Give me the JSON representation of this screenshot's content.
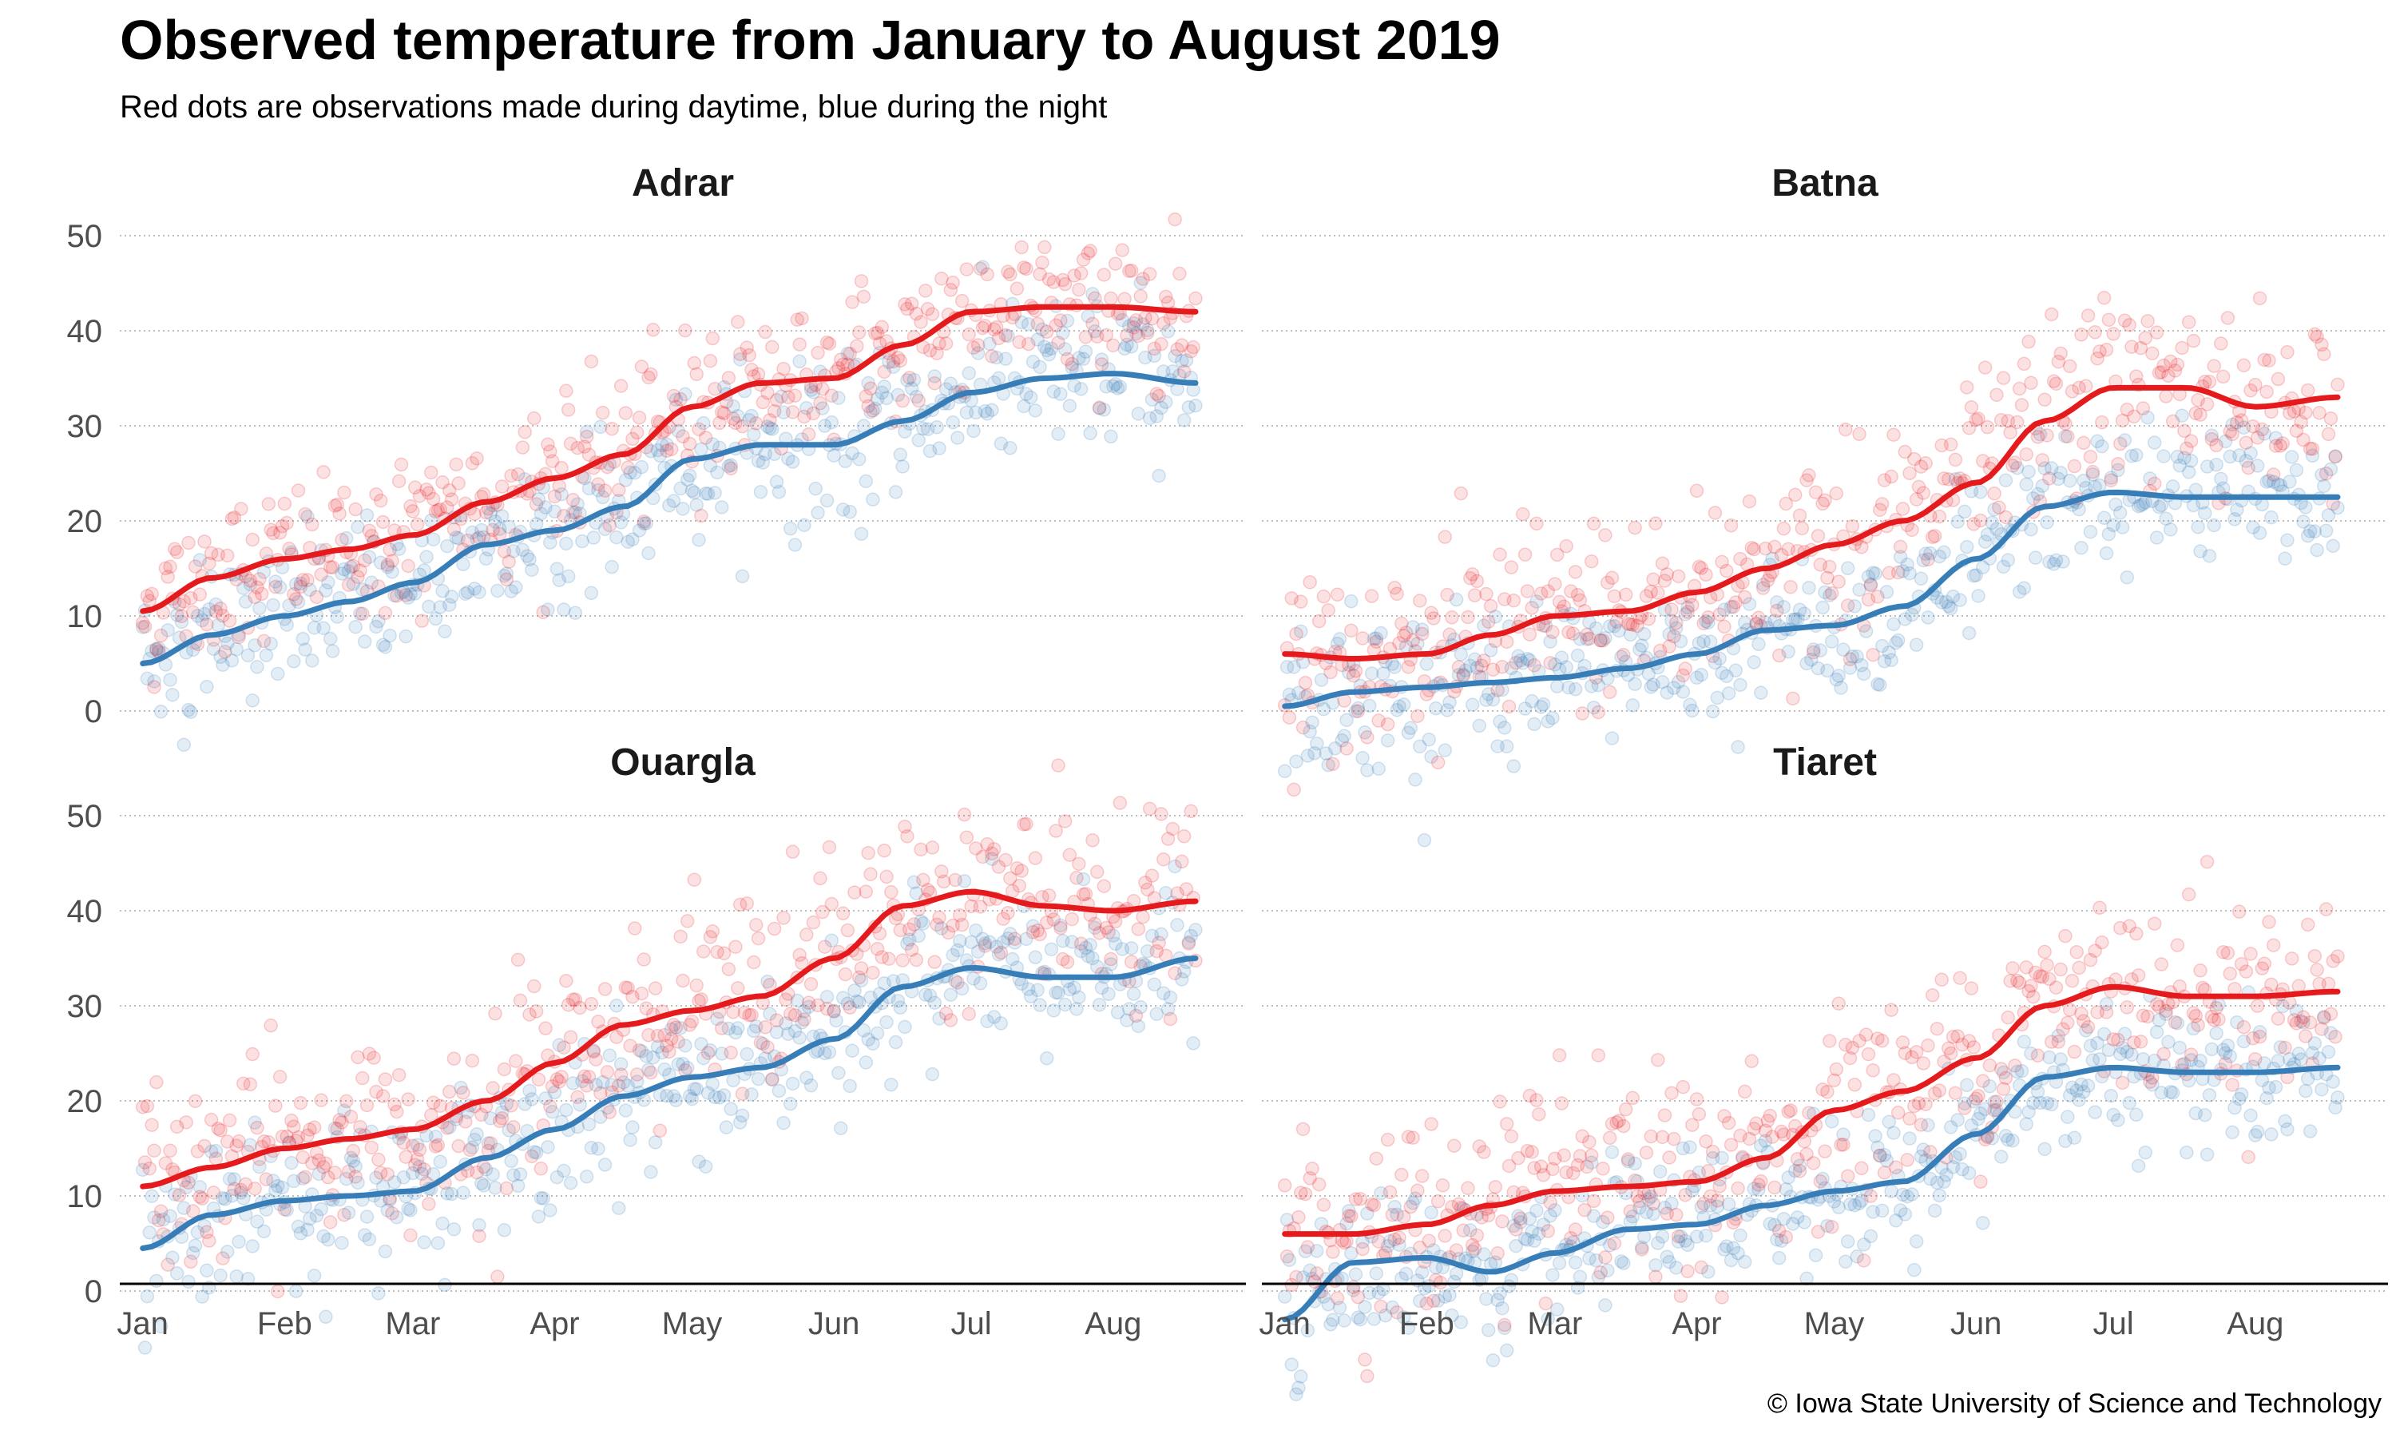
{
  "title": "Observed temperature from January to August 2019",
  "subtitle": "Red dots are observations made during daytime, blue during the night",
  "caption": "© Iowa State University of Science and Technology",
  "colors": {
    "day": "#e41a1c",
    "night": "#377eb8"
  },
  "chart_data": {
    "type": "scatter",
    "facet_wrap": true,
    "x": {
      "unit": "day-of-year 2019",
      "range": [
        -5,
        241
      ],
      "tick_positions": [
        0,
        31,
        59,
        90,
        120,
        151,
        181,
        212
      ],
      "tick_labels": [
        "Jan",
        "Feb",
        "Mar",
        "Apr",
        "May",
        "Jun",
        "Jul",
        "Aug"
      ]
    },
    "y": {
      "range": [
        -8,
        51
      ],
      "ticks": [
        0,
        10,
        20,
        30,
        40,
        50
      ]
    },
    "smooth_knots_x": [
      0,
      15,
      31,
      45,
      59,
      75,
      90,
      105,
      120,
      135,
      151,
      166,
      181,
      197,
      212,
      230
    ],
    "panels": [
      {
        "name": "Adrar",
        "day_smooth": [
          10.5,
          14,
          16,
          17,
          18.5,
          22,
          24.5,
          27,
          32,
          34.5,
          35,
          38.5,
          42,
          42.5,
          42.5,
          42
        ],
        "night_smooth": [
          5,
          8,
          10,
          11.5,
          13.5,
          17.5,
          19,
          21.5,
          26.5,
          28,
          28,
          30.5,
          33.5,
          35,
          35.5,
          34.5
        ],
        "day_spread": 4,
        "night_spread": 4
      },
      {
        "name": "Batna",
        "day_smooth": [
          6,
          5.5,
          6,
          8,
          10,
          10.5,
          12.5,
          15,
          17.5,
          20,
          24,
          30.5,
          34,
          34,
          32,
          33
        ],
        "night_smooth": [
          0.5,
          2,
          2.5,
          3,
          3.5,
          4.5,
          6,
          8.5,
          9,
          11,
          16,
          21.5,
          23,
          22.5,
          22.5,
          22.5
        ],
        "day_spread": 5,
        "night_spread": 4
      },
      {
        "name": "Ouargla",
        "day_smooth": [
          11,
          13,
          15,
          16,
          17,
          20,
          24,
          28,
          29.5,
          31,
          35,
          40.5,
          42,
          40.5,
          40,
          41
        ],
        "night_smooth": [
          4.5,
          8,
          9.5,
          10,
          10.5,
          14,
          17,
          20.5,
          22.5,
          23.5,
          26.5,
          32,
          34,
          33,
          33,
          35
        ],
        "day_spread": 5,
        "night_spread": 4
      },
      {
        "name": "Tiaret",
        "day_smooth": [
          6,
          6,
          7,
          9,
          10.5,
          11,
          11.5,
          14,
          19,
          21,
          24.5,
          30,
          32,
          31,
          31,
          31.5
        ],
        "night_smooth": [
          -3,
          3,
          3.5,
          2,
          4,
          6.5,
          7,
          9,
          10.5,
          11.5,
          16.5,
          22.5,
          23.5,
          23,
          23,
          23.5
        ],
        "day_spread": 5,
        "night_spread": 4
      }
    ],
    "legend": "none"
  }
}
